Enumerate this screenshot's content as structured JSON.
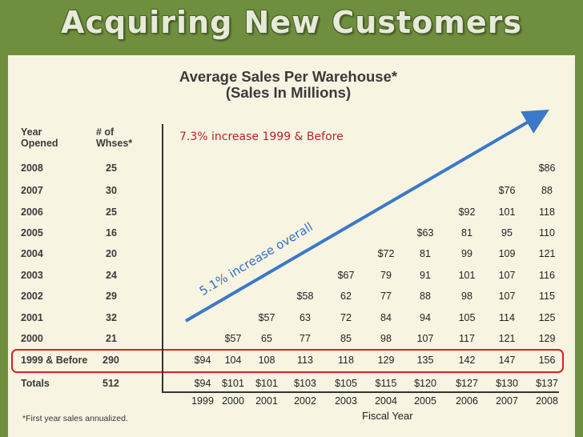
{
  "slide_title": "Acquiring New Customers",
  "chart_data": {
    "type": "table",
    "title": "Average Sales Per Warehouse*",
    "subtitle": "(Sales In Millions)",
    "row_header": "Year Opened",
    "count_header": "# of Whses*",
    "xlabel": "Fiscal Year",
    "columns": [
      "1999",
      "2000",
      "2001",
      "2002",
      "2003",
      "2004",
      "2005",
      "2006",
      "2007",
      "2008"
    ],
    "rows": [
      {
        "label": "2008",
        "count": "25",
        "values": [
          "",
          "",
          "",
          "",
          "",
          "",
          "",
          "",
          "",
          "$86"
        ]
      },
      {
        "label": "2007",
        "count": "30",
        "values": [
          "",
          "",
          "",
          "",
          "",
          "",
          "",
          "",
          "$76",
          "88"
        ]
      },
      {
        "label": "2006",
        "count": "25",
        "values": [
          "",
          "",
          "",
          "",
          "",
          "",
          "",
          "$92",
          "101",
          "118"
        ]
      },
      {
        "label": "2005",
        "count": "16",
        "values": [
          "",
          "",
          "",
          "",
          "",
          "",
          "$63",
          "81",
          "95",
          "110"
        ]
      },
      {
        "label": "2004",
        "count": "20",
        "values": [
          "",
          "",
          "",
          "",
          "",
          "$72",
          "81",
          "99",
          "109",
          "121"
        ]
      },
      {
        "label": "2003",
        "count": "24",
        "values": [
          "",
          "",
          "",
          "",
          "$67",
          "79",
          "91",
          "101",
          "107",
          "116"
        ]
      },
      {
        "label": "2002",
        "count": "29",
        "values": [
          "",
          "",
          "",
          "$58",
          "62",
          "77",
          "88",
          "98",
          "107",
          "115"
        ]
      },
      {
        "label": "2001",
        "count": "32",
        "values": [
          "",
          "",
          "$57",
          "63",
          "72",
          "84",
          "94",
          "105",
          "114",
          "125"
        ]
      },
      {
        "label": "2000",
        "count": "21",
        "values": [
          "",
          "$57",
          "65",
          "77",
          "85",
          "98",
          "107",
          "117",
          "121",
          "129"
        ]
      },
      {
        "label": "1999 & Before",
        "count": "290",
        "values": [
          "$94",
          "104",
          "108",
          "113",
          "118",
          "129",
          "135",
          "142",
          "147",
          "156"
        ]
      },
      {
        "label": "Totals",
        "count": "512",
        "values": [
          "$94",
          "$101",
          "$101",
          "$103",
          "$105",
          "$115",
          "$120",
          "$127",
          "$130",
          "$137"
        ]
      }
    ],
    "annotations": {
      "red_text": "7.3% increase 1999 & Before",
      "blue_text": "5.1% increase overall"
    },
    "footnote": "*First year sales annualized."
  },
  "colors": {
    "background": "#6f8f3e",
    "panel": "#f7f4e2",
    "highlight": "#d92121",
    "arrow": "#3a78c9",
    "red_text": "#c0202a"
  }
}
